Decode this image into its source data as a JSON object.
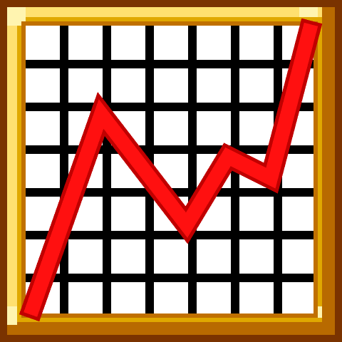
{
  "icon": {
    "name": "line-chart-icon",
    "description_colors": {
      "outer_border": "#7a3300",
      "gold_frame": "#e0a800",
      "gold_highlight": "#ffe070",
      "gold_shadow": "#b86a00",
      "grid_background": "#ffffff",
      "grid_lines": "#000000",
      "trend_line": "#ff0000",
      "trend_line_shadow": "#c00000"
    },
    "trend": [
      "up",
      "down",
      "up",
      "up"
    ]
  }
}
